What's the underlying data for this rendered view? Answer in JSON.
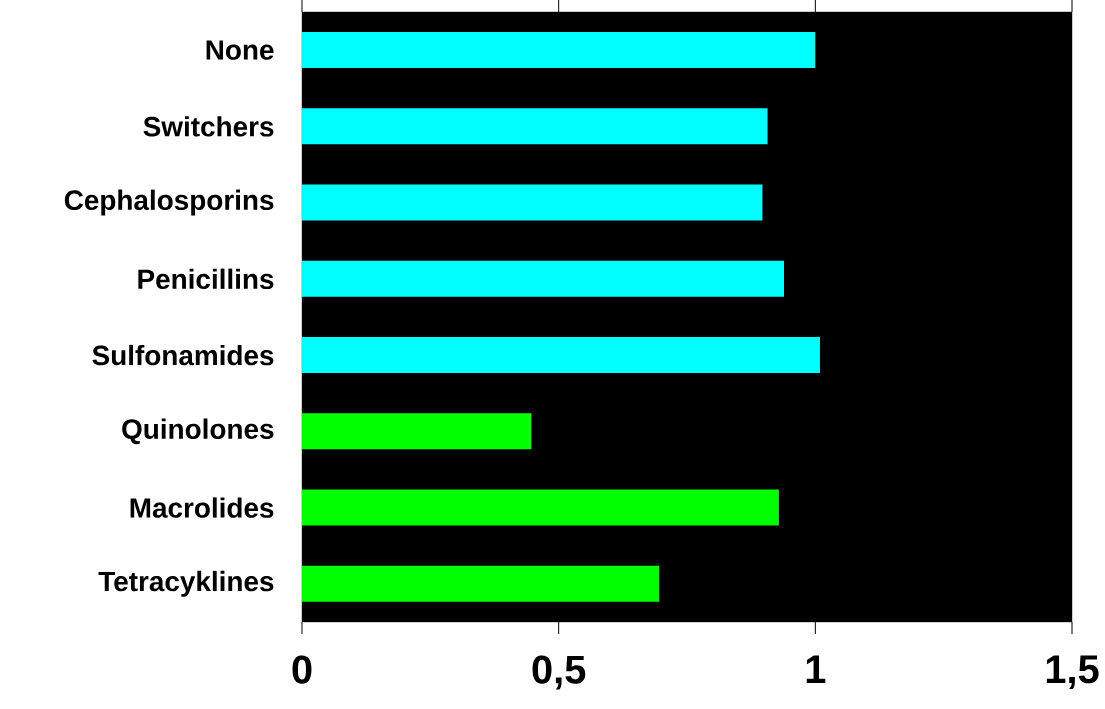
{
  "chart_data": {
    "type": "bar",
    "orientation": "horizontal",
    "categories": [
      "None",
      "Switchers",
      "Cephalosporins",
      "Penicillins",
      "Sulfonamides",
      "Quinolones",
      "Macrolides",
      "Tetracyklines"
    ],
    "values": [
      1.0,
      0.907,
      0.897,
      0.939,
      1.009,
      0.447,
      0.929,
      0.696
    ],
    "colors": [
      "#00ffff",
      "#00ffff",
      "#00ffff",
      "#00ffff",
      "#00ffff",
      "#00ff00",
      "#00ff00",
      "#00ff00"
    ],
    "xlim": [
      0,
      1.5
    ],
    "xticks": [
      0,
      {
        "value": 0.5,
        "label": "0,5"
      },
      1,
      {
        "value": 1.5,
        "label": "1,5"
      }
    ]
  }
}
